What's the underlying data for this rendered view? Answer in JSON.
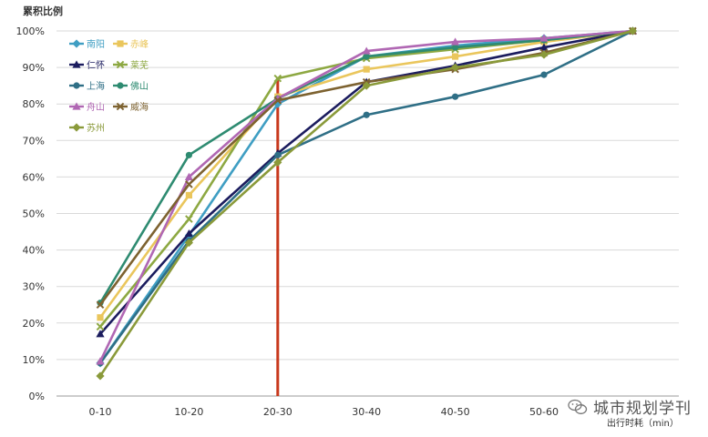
{
  "watermark": {
    "text": "城市规划学刊"
  },
  "chart_data": {
    "type": "line",
    "ylabel": "累积比例",
    "xlabel": "出行时耗（min）",
    "categories": [
      "0-10",
      "10-20",
      "20-30",
      "30-40",
      "40-50",
      "50-60",
      ""
    ],
    "y_ticks": [
      "0%",
      "10%",
      "20%",
      "30%",
      "40%",
      "50%",
      "60%",
      "70%",
      "80%",
      "90%",
      "100%"
    ],
    "ylim": [
      0,
      100
    ],
    "grid": true,
    "legend_position": "top-left",
    "reference_line": {
      "at_category": "20-30",
      "color": "#c8381c"
    },
    "series": [
      {
        "name": "南阳",
        "color": "#3f9ec3",
        "marker": "diamond",
        "values": [
          9,
          44,
          80,
          93,
          96,
          98,
          100
        ]
      },
      {
        "name": "赤峰",
        "color": "#eac65c",
        "marker": "square",
        "values": [
          21.5,
          55,
          82,
          89.5,
          93,
          97,
          100
        ]
      },
      {
        "name": "仁怀",
        "color": "#1b1c5e",
        "marker": "triangle",
        "values": [
          17,
          44.5,
          66.5,
          86,
          90.5,
          95.5,
          100
        ]
      },
      {
        "name": "莱芜",
        "color": "#8da842",
        "marker": "x",
        "values": [
          19,
          48.5,
          87,
          92.5,
          95,
          97.5,
          100
        ]
      },
      {
        "name": "上海",
        "color": "#2f6f86",
        "marker": "circle",
        "values": [
          9,
          42.5,
          66,
          77,
          82,
          88,
          100
        ]
      },
      {
        "name": "佛山",
        "color": "#2e8b71",
        "marker": "circle",
        "values": [
          25.5,
          66,
          81.5,
          93,
          95.5,
          97.5,
          100
        ]
      },
      {
        "name": "舟山",
        "color": "#b067b3",
        "marker": "triangle",
        "values": [
          9.5,
          60,
          81.5,
          94.5,
          97,
          98,
          100
        ]
      },
      {
        "name": "威海",
        "color": "#7d6230",
        "marker": "x",
        "values": [
          25,
          58,
          81,
          86,
          89.5,
          94,
          100
        ]
      },
      {
        "name": "苏州",
        "color": "#8a9a3a",
        "marker": "diamond",
        "values": [
          5.5,
          42,
          64,
          85,
          90,
          93.5,
          100
        ]
      }
    ]
  }
}
